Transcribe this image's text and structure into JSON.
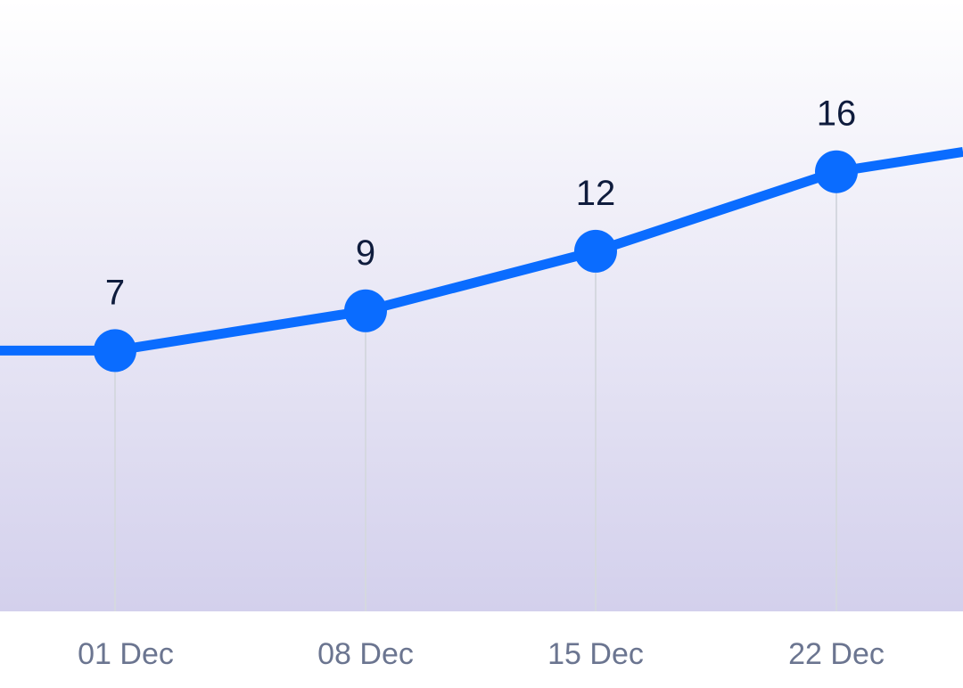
{
  "colors": {
    "line": "#0a6cff",
    "marker": "#0a6cff",
    "drop_line": "#d5d8e0",
    "point_label": "#0f1c3d",
    "tick_label": "#6b7590",
    "gradient_top": "#ffffff",
    "gradient_bottom": "#d3d0ec"
  },
  "chart_data": {
    "type": "line",
    "x_axis_type": "date",
    "title": "",
    "xlabel": "",
    "ylabel": "",
    "x": [
      "01 Dec",
      "08 Dec",
      "15 Dec",
      "22 Dec"
    ],
    "tick_labels": [
      "01 Dec",
      "08 Dec",
      "15 Dec",
      "22 Dec"
    ],
    "series": [
      {
        "values": [
          7,
          9,
          12,
          16
        ],
        "data_labels": [
          "7",
          "9",
          "12",
          "16"
        ]
      }
    ],
    "left_edge_value": 7,
    "right_edge_value": 17,
    "ylim": [
      0,
      18
    ],
    "grid": false,
    "legend": "none",
    "area_fill": "vertical gradient under plot",
    "drop_lines": true
  }
}
